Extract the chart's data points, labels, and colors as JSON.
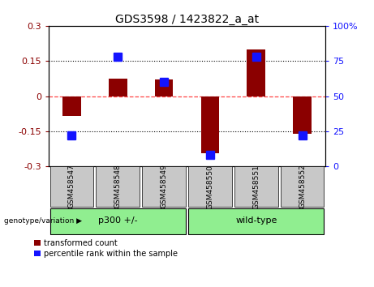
{
  "title": "GDS3598 / 1423822_a_at",
  "samples": [
    "GSM458547",
    "GSM458548",
    "GSM458549",
    "GSM458550",
    "GSM458551",
    "GSM458552"
  ],
  "red_values": [
    -0.085,
    0.075,
    0.07,
    -0.245,
    0.2,
    -0.16
  ],
  "blue_values": [
    22,
    78,
    60,
    8,
    78,
    22
  ],
  "group_label": "genotype/variation",
  "group1_label": "p300 +/-",
  "group1_indices": [
    0,
    1,
    2
  ],
  "group2_label": "wild-type",
  "group2_indices": [
    3,
    4,
    5
  ],
  "group_color": "#90EE90",
  "ylim_left": [
    -0.3,
    0.3
  ],
  "ylim_right": [
    0,
    100
  ],
  "yticks_left": [
    -0.3,
    -0.15,
    0,
    0.15,
    0.3
  ],
  "yticks_right": [
    0,
    25,
    50,
    75,
    100
  ],
  "yticklabels_left": [
    "-0.3",
    "-0.15",
    "0",
    "0.15",
    "0.3"
  ],
  "yticklabels_right": [
    "0",
    "25",
    "50",
    "75",
    "100%"
  ],
  "red_color": "#8B0000",
  "blue_color": "#1414FF",
  "zero_line_color": "#FF4444",
  "dotted_line_color": "#000000",
  "sample_box_color": "#C8C8C8",
  "bar_width": 0.4,
  "blue_marker_size": 7,
  "legend_red": "transformed count",
  "legend_blue": "percentile rank within the sample",
  "title_fontsize": 10,
  "tick_fontsize": 8,
  "sample_fontsize": 6.5,
  "group_fontsize": 8,
  "legend_fontsize": 7
}
